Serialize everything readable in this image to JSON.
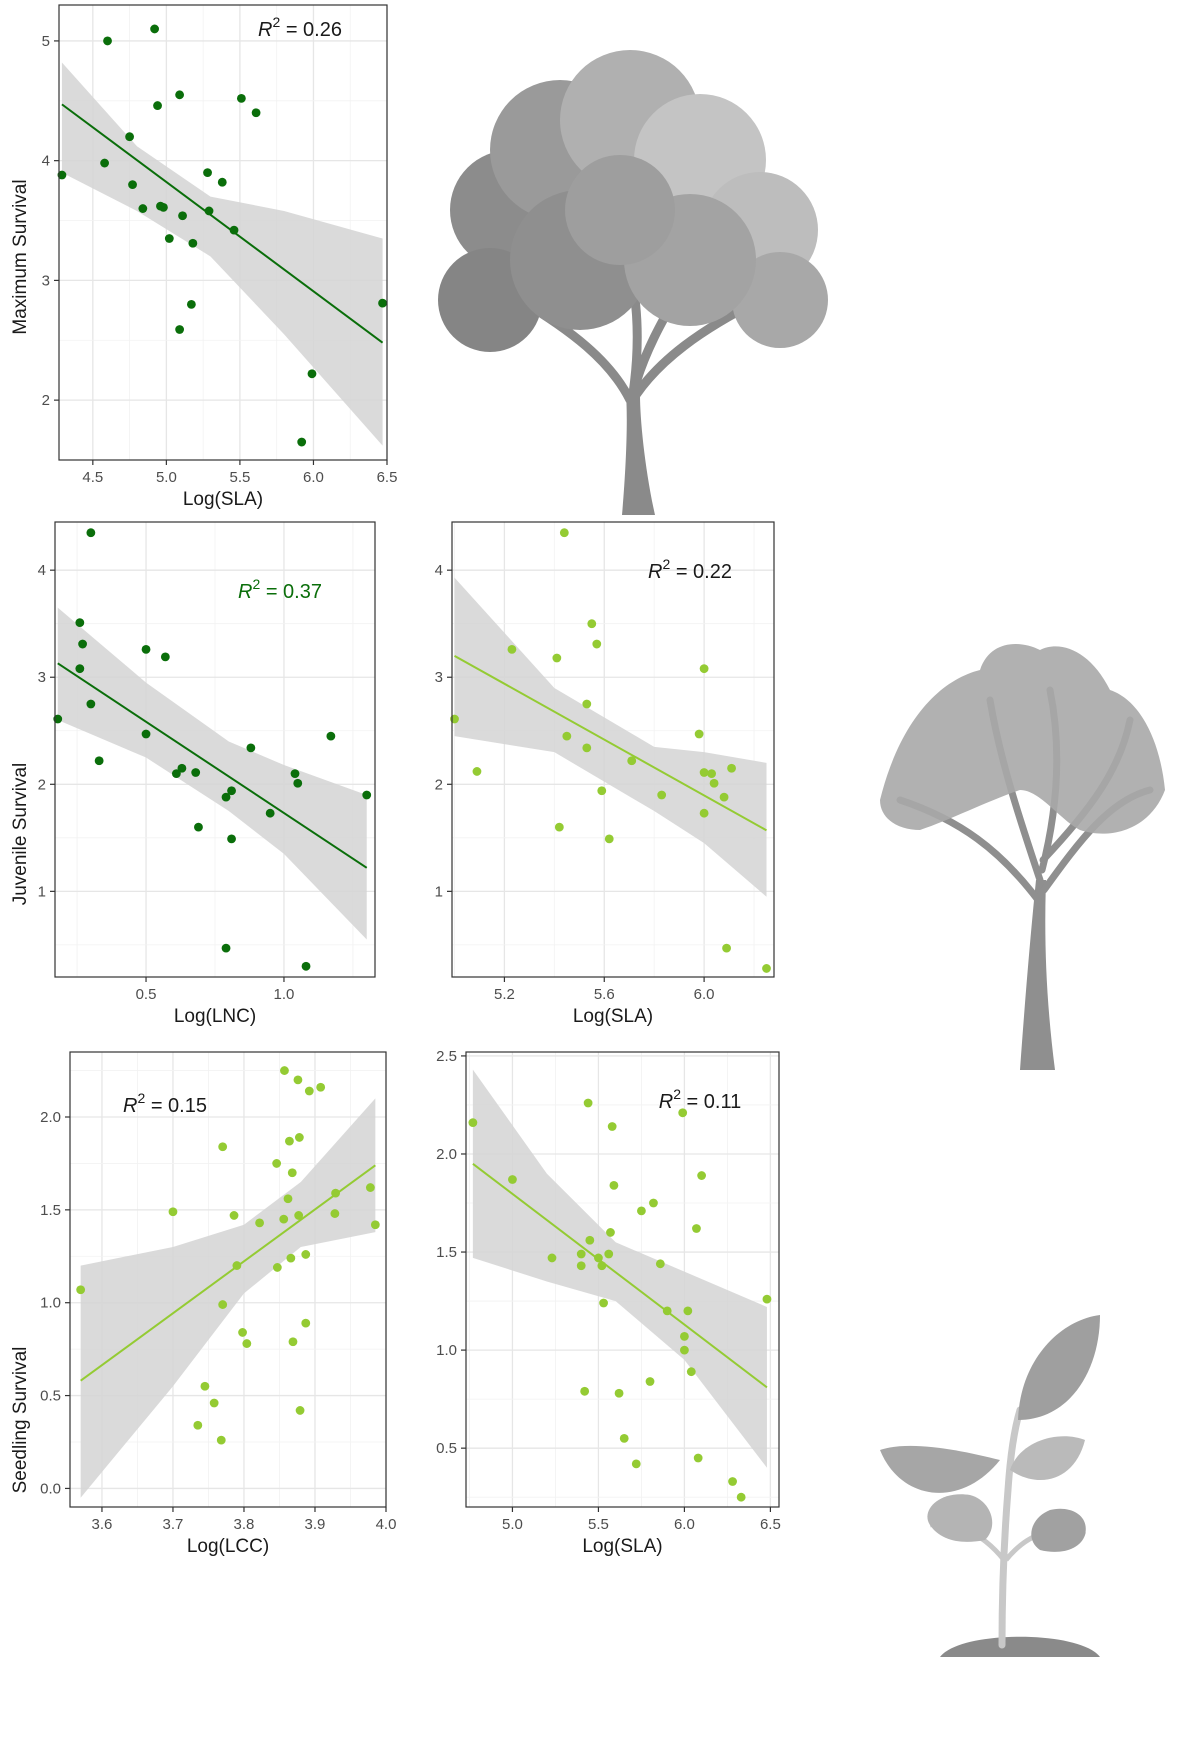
{
  "colors": {
    "dark_green": "#0a6e0a",
    "light_green": "#94cb33",
    "band": "#d4d4d4",
    "silhouette": "#9a9a9a"
  },
  "icons": {
    "mature_tree": "tree-silhouette-icon",
    "juvenile_tree": "sapling-tree-icon",
    "seedling": "seedling-icon"
  },
  "labels": {
    "maximum_survival": "Maximum Survival",
    "juvenile_survival": "Juvenile Survival",
    "seedling_survival": "Seedling Survival"
  },
  "chart_data": [
    {
      "id": "max_sla",
      "type": "scatter",
      "trend": "linear",
      "color": "dark_green",
      "xlabel": "Log(SLA)",
      "ylabel": "Maximum Survival",
      "xlim": [
        4.27,
        6.5
      ],
      "ylim": [
        1.5,
        5.3
      ],
      "xticks": [
        "4.5",
        "5.0",
        "5.5",
        "6.0",
        "6.5"
      ],
      "yticks": [
        "2",
        "3",
        "4",
        "5"
      ],
      "annotation": {
        "r2": "0.26",
        "color": "#1a1a1a"
      },
      "fit": {
        "x": [
          4.29,
          6.47
        ],
        "y": [
          4.47,
          2.48
        ]
      },
      "band": {
        "x": [
          4.29,
          4.8,
          5.3,
          5.8,
          6.47
        ],
        "upper": [
          4.82,
          4.12,
          3.7,
          3.58,
          3.35
        ],
        "lower": [
          3.9,
          3.58,
          3.2,
          2.55,
          1.62
        ]
      },
      "points": [
        [
          4.29,
          3.88
        ],
        [
          4.6,
          5.0
        ],
        [
          4.92,
          5.1
        ],
        [
          4.58,
          3.98
        ],
        [
          4.94,
          4.46
        ],
        [
          5.09,
          4.55
        ],
        [
          4.75,
          4.2
        ],
        [
          4.77,
          3.8
        ],
        [
          4.84,
          3.6
        ],
        [
          4.96,
          3.62
        ],
        [
          4.98,
          3.61
        ],
        [
          5.02,
          3.35
        ],
        [
          5.11,
          3.54
        ],
        [
          5.18,
          3.31
        ],
        [
          5.17,
          2.8
        ],
        [
          5.28,
          3.9
        ],
        [
          5.29,
          3.58
        ],
        [
          5.38,
          3.82
        ],
        [
          5.46,
          3.42
        ],
        [
          5.51,
          4.52
        ],
        [
          5.61,
          4.4
        ],
        [
          5.09,
          2.59
        ],
        [
          5.92,
          1.65
        ],
        [
          5.99,
          2.22
        ],
        [
          6.47,
          2.81
        ]
      ]
    },
    {
      "id": "juv_lnc",
      "type": "scatter",
      "trend": "linear",
      "color": "dark_green",
      "xlabel": "Log(LNC)",
      "ylabel": "Juvenile Survival",
      "xlim": [
        0.17,
        1.33
      ],
      "ylim": [
        0.2,
        4.45
      ],
      "xticks": [
        "0.5",
        "1.0"
      ],
      "yticks": [
        "1",
        "2",
        "3",
        "4"
      ],
      "annotation": {
        "r2": "0.37",
        "color": "#0a6e0a"
      },
      "fit": {
        "x": [
          0.18,
          1.3
        ],
        "y": [
          3.13,
          1.22
        ]
      },
      "band": {
        "x": [
          0.18,
          0.5,
          0.8,
          1.0,
          1.3
        ],
        "upper": [
          3.65,
          2.95,
          2.4,
          2.18,
          1.9
        ],
        "lower": [
          2.6,
          2.25,
          1.75,
          1.35,
          0.55
        ]
      },
      "points": [
        [
          0.18,
          2.61
        ],
        [
          0.26,
          3.51
        ],
        [
          0.27,
          3.31
        ],
        [
          0.26,
          3.08
        ],
        [
          0.3,
          4.35
        ],
        [
          0.3,
          2.75
        ],
        [
          0.33,
          2.22
        ],
        [
          0.5,
          3.26
        ],
        [
          0.57,
          3.19
        ],
        [
          0.5,
          2.47
        ],
        [
          0.61,
          2.1
        ],
        [
          0.63,
          2.15
        ],
        [
          0.68,
          2.11
        ],
        [
          0.69,
          1.6
        ],
        [
          0.79,
          1.88
        ],
        [
          0.81,
          1.94
        ],
        [
          0.81,
          1.49
        ],
        [
          0.88,
          2.34
        ],
        [
          0.95,
          1.73
        ],
        [
          1.04,
          2.1
        ],
        [
          1.05,
          2.01
        ],
        [
          1.17,
          2.45
        ],
        [
          1.3,
          1.9
        ],
        [
          0.79,
          0.47
        ],
        [
          1.08,
          0.3
        ]
      ]
    },
    {
      "id": "juv_sla",
      "type": "scatter",
      "trend": "linear",
      "color": "light_green",
      "xlabel": "Log(SLA)",
      "ylabel": "",
      "xlim": [
        4.99,
        6.28
      ],
      "ylim": [
        0.2,
        4.45
      ],
      "xticks": [
        "5.2",
        "5.6",
        "6.0"
      ],
      "yticks": [
        "1",
        "2",
        "3",
        "4"
      ],
      "annotation": {
        "r2": "0.22",
        "color": "#1a1a1a"
      },
      "fit": {
        "x": [
          5.0,
          6.25
        ],
        "y": [
          3.2,
          1.57
        ]
      },
      "band": {
        "x": [
          5.0,
          5.4,
          5.8,
          6.0,
          6.25
        ],
        "upper": [
          3.93,
          2.9,
          2.35,
          2.3,
          2.2
        ],
        "lower": [
          2.45,
          2.3,
          1.75,
          1.45,
          0.95
        ]
      },
      "points": [
        [
          5.0,
          2.61
        ],
        [
          5.09,
          2.12
        ],
        [
          5.23,
          3.26
        ],
        [
          5.41,
          3.18
        ],
        [
          5.44,
          4.35
        ],
        [
          5.55,
          3.5
        ],
        [
          5.57,
          3.31
        ],
        [
          5.45,
          2.45
        ],
        [
          5.53,
          2.75
        ],
        [
          5.53,
          2.34
        ],
        [
          5.42,
          1.6
        ],
        [
          5.59,
          1.94
        ],
        [
          5.62,
          1.49
        ],
        [
          5.71,
          2.22
        ],
        [
          5.83,
          1.9
        ],
        [
          5.98,
          2.47
        ],
        [
          6.0,
          3.08
        ],
        [
          6.0,
          2.11
        ],
        [
          6.03,
          2.1
        ],
        [
          6.04,
          2.01
        ],
        [
          6.0,
          1.73
        ],
        [
          6.08,
          1.88
        ],
        [
          6.11,
          2.15
        ],
        [
          6.09,
          0.47
        ],
        [
          6.25,
          0.28
        ]
      ]
    },
    {
      "id": "seed_lcc",
      "type": "scatter",
      "trend": "linear",
      "color": "light_green",
      "xlabel": "Log(LCC)",
      "ylabel": "Seedling Survival",
      "xlim": [
        3.555,
        4.0
      ],
      "ylim": [
        -0.1,
        2.35
      ],
      "xticks": [
        "3.6",
        "3.7",
        "3.8",
        "3.9",
        "4.0"
      ],
      "yticks": [
        "0.0",
        "0.5",
        "1.0",
        "1.5",
        "2.0"
      ],
      "annotation": {
        "r2": "0.15",
        "color": "#1a1a1a"
      },
      "fit": {
        "x": [
          3.57,
          3.985
        ],
        "y": [
          0.58,
          1.74
        ]
      },
      "band": {
        "x": [
          3.57,
          3.7,
          3.8,
          3.88,
          3.985
        ],
        "upper": [
          1.2,
          1.3,
          1.42,
          1.65,
          2.1
        ],
        "lower": [
          -0.05,
          0.55,
          1.05,
          1.3,
          1.38
        ]
      },
      "points": [
        [
          3.57,
          1.07
        ],
        [
          3.7,
          1.49
        ],
        [
          3.77,
          1.84
        ],
        [
          3.786,
          1.47
        ],
        [
          3.77,
          0.99
        ],
        [
          3.79,
          1.2
        ],
        [
          3.798,
          0.84
        ],
        [
          3.804,
          0.78
        ],
        [
          3.745,
          0.55
        ],
        [
          3.758,
          0.46
        ],
        [
          3.735,
          0.34
        ],
        [
          3.768,
          0.26
        ],
        [
          3.822,
          1.43
        ],
        [
          3.846,
          1.75
        ],
        [
          3.857,
          2.25
        ],
        [
          3.864,
          1.87
        ],
        [
          3.876,
          2.2
        ],
        [
          3.878,
          1.89
        ],
        [
          3.868,
          1.7
        ],
        [
          3.862,
          1.56
        ],
        [
          3.856,
          1.45
        ],
        [
          3.877,
          1.47
        ],
        [
          3.847,
          1.19
        ],
        [
          3.866,
          1.24
        ],
        [
          3.887,
          1.26
        ],
        [
          3.869,
          0.79
        ],
        [
          3.887,
          0.89
        ],
        [
          3.879,
          0.42
        ],
        [
          3.892,
          2.14
        ],
        [
          3.908,
          2.16
        ],
        [
          3.929,
          1.59
        ],
        [
          3.928,
          1.48
        ],
        [
          3.978,
          1.62
        ],
        [
          3.985,
          1.42
        ]
      ]
    },
    {
      "id": "seed_sla",
      "type": "scatter",
      "trend": "linear",
      "color": "light_green",
      "xlabel": "Log(SLA)",
      "ylabel": "",
      "xlim": [
        4.73,
        6.55
      ],
      "ylim": [
        0.2,
        2.52
      ],
      "xticks": [
        "5.0",
        "5.5",
        "6.0",
        "6.5"
      ],
      "yticks": [
        "0.5",
        "1.0",
        "1.5",
        "2.0",
        "2.5"
      ],
      "annotation": {
        "r2": "0.11",
        "color": "#1a1a1a"
      },
      "fit": {
        "x": [
          4.77,
          6.48
        ],
        "y": [
          1.95,
          0.81
        ]
      },
      "band": {
        "x": [
          4.77,
          5.2,
          5.6,
          6.0,
          6.48
        ],
        "upper": [
          2.43,
          1.9,
          1.55,
          1.4,
          1.22
        ],
        "lower": [
          1.47,
          1.35,
          1.25,
          0.95,
          0.4
        ]
      },
      "points": [
        [
          4.77,
          2.16
        ],
        [
          5.0,
          1.87
        ],
        [
          5.23,
          1.47
        ],
        [
          5.4,
          1.49
        ],
        [
          5.4,
          1.43
        ],
        [
          5.45,
          1.56
        ],
        [
          5.42,
          0.79
        ],
        [
          5.44,
          2.26
        ],
        [
          5.5,
          1.47
        ],
        [
          5.52,
          1.43
        ],
        [
          5.53,
          1.24
        ],
        [
          5.56,
          1.49
        ],
        [
          5.57,
          1.6
        ],
        [
          5.58,
          2.14
        ],
        [
          5.59,
          1.84
        ],
        [
          5.62,
          0.78
        ],
        [
          5.65,
          0.55
        ],
        [
          5.72,
          0.42
        ],
        [
          5.75,
          1.71
        ],
        [
          5.8,
          0.84
        ],
        [
          5.82,
          1.75
        ],
        [
          5.86,
          1.44
        ],
        [
          5.9,
          1.2
        ],
        [
          5.99,
          2.21
        ],
        [
          6.0,
          1.07
        ],
        [
          6.02,
          1.2
        ],
        [
          6.0,
          1.0
        ],
        [
          6.04,
          0.89
        ],
        [
          6.07,
          1.62
        ],
        [
          6.1,
          1.89
        ],
        [
          6.08,
          0.45
        ],
        [
          6.28,
          0.33
        ],
        [
          6.33,
          0.25
        ],
        [
          6.48,
          1.26
        ]
      ]
    }
  ]
}
